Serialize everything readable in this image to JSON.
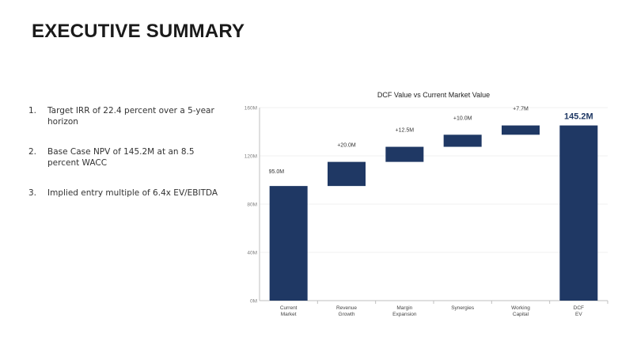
{
  "slide": {
    "title": "EXECUTIVE SUMMARY",
    "points": [
      {
        "num": "1.",
        "text": "Target IRR of 22.4 percent over a 5-year horizon"
      },
      {
        "num": "2.",
        "text": "Base Case NPV of 145.2M at an 8.5 percent WACC"
      },
      {
        "num": "3.",
        "text": "Implied entry multiple of 6.4x EV/EBITDA"
      }
    ]
  },
  "colors": {
    "bar": "#1f3864",
    "axis": "#bfbfbf",
    "grid": "#eeeeee",
    "tick_text": "#808080",
    "label_text": "#333333",
    "highlight_text": "#1f3864"
  },
  "chart_data": {
    "type": "bar",
    "subtype": "waterfall",
    "title": "DCF Value vs Current Market Value",
    "xlabel": "",
    "ylabel": "",
    "ylim": [
      0,
      160
    ],
    "yticks": [
      0,
      40,
      80,
      120,
      160
    ],
    "ytick_labels": [
      "0M",
      "40M",
      "80M",
      "120M",
      "160M"
    ],
    "grid": true,
    "categories": [
      [
        "Current",
        "Market"
      ],
      [
        "Revenue",
        "Growth"
      ],
      [
        "Margin",
        "Expansion"
      ],
      [
        "Synergies"
      ],
      [
        "Working",
        "Capital"
      ],
      [
        "DCF",
        "EV"
      ]
    ],
    "bars": [
      {
        "kind": "total",
        "start": 0,
        "end": 95.0,
        "label": "95.0M"
      },
      {
        "kind": "delta",
        "start": 95.0,
        "end": 115.0,
        "label": "+20.0M"
      },
      {
        "kind": "delta",
        "start": 115.0,
        "end": 127.5,
        "label": "+12.5M"
      },
      {
        "kind": "delta",
        "start": 127.5,
        "end": 137.5,
        "label": "+10.0M"
      },
      {
        "kind": "delta",
        "start": 137.5,
        "end": 145.2,
        "label": "+7.7M"
      },
      {
        "kind": "total",
        "start": 0,
        "end": 145.2,
        "label": "145.2M",
        "emphasis": true
      }
    ]
  }
}
